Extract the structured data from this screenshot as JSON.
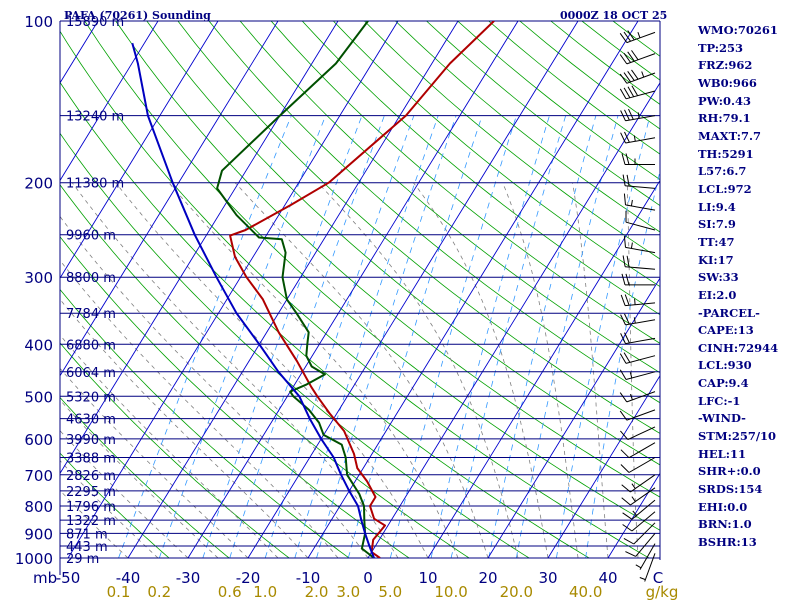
{
  "header": {
    "title": "PAFA (70261) Sounding",
    "date": "0000Z 18 OCT 25"
  },
  "indices": [
    "WMO:70261",
    "TP:253",
    "FRZ:962",
    "WB0:966",
    "PW:0.43",
    "RH:79.1",
    "MAXT:7.7",
    "TH:5291",
    "L57:6.7",
    "LCL:972",
    "LI:9.4",
    "SI:7.9",
    "TT:47",
    "KI:17",
    "SW:33",
    "EI:2.0",
    "-PARCEL-",
    "CAPE:13",
    "CINH:72944",
    "LCL:930",
    "CAP:9.4",
    "LFC:-1",
    "-WIND-",
    "STM:257/10",
    "HEL:11",
    "SHR+:0.0",
    "SRDS:154",
    "EHI:0.0",
    "BRN:1.0",
    "BSHR:13"
  ],
  "colors": {
    "text": "#000080",
    "isobar": "#000080",
    "isotherm": "#0000cd",
    "dry_adiabat": "#00a000",
    "moist_adiabat": "#808080",
    "mixing_ratio": "#3399ff",
    "temperature": "#b00000",
    "dewpoint": "#005000",
    "parcel": "#0000c0",
    "wind_barbs": "#000000"
  },
  "chart_data": {
    "type": "skew-t",
    "ylabel": "mb",
    "xlabel": "C",
    "mixing_ratio_unit": "g/kg",
    "ylim": [
      1000,
      100
    ],
    "xlim": [
      -50,
      50
    ],
    "pressure_ticks": [
      100,
      200,
      300,
      400,
      500,
      600,
      700,
      800,
      900,
      1000
    ],
    "temperature_ticks": [
      -50,
      -40,
      -30,
      -20,
      -10,
      0,
      10,
      20,
      30,
      40
    ],
    "temperature_tick_labels": [
      "-50",
      "-40",
      "-30",
      "-20",
      "-10",
      "0",
      "10",
      "20",
      "30",
      "40"
    ],
    "mixing_ratio_labels": [
      {
        "value": 0.1,
        "label": "0.1"
      },
      {
        "value": 0.2,
        "label": "0.2"
      },
      {
        "value": 0.6,
        "label": "0.6"
      },
      {
        "value": 1.0,
        "label": "1.0"
      },
      {
        "value": 2.0,
        "label": "2.0"
      },
      {
        "value": 3.0,
        "label": "3.0"
      },
      {
        "value": 5.0,
        "label": "5.0"
      },
      {
        "value": 10.0,
        "label": "10.0"
      },
      {
        "value": 20.0,
        "label": "20.0"
      },
      {
        "value": 40.0,
        "label": "40.0"
      }
    ],
    "height_labels": [
      {
        "p": 100,
        "label": "15890 m"
      },
      {
        "p": 150,
        "label": "13240 m"
      },
      {
        "p": 200,
        "label": "11380 m"
      },
      {
        "p": 250,
        "label": "9960 m"
      },
      {
        "p": 300,
        "label": "8800 m"
      },
      {
        "p": 350,
        "label": "7784 m"
      },
      {
        "p": 400,
        "label": "6880 m"
      },
      {
        "p": 450,
        "label": "6064 m"
      },
      {
        "p": 500,
        "label": "5320 m"
      },
      {
        "p": 550,
        "label": "4630 m"
      },
      {
        "p": 600,
        "label": "3990 m"
      },
      {
        "p": 650,
        "label": "3388 m"
      },
      {
        "p": 700,
        "label": "2826 m"
      },
      {
        "p": 750,
        "label": "2295 m"
      },
      {
        "p": 800,
        "label": "1796 m"
      },
      {
        "p": 850,
        "label": "1322 m"
      },
      {
        "p": 900,
        "label": "871 m"
      },
      {
        "p": 950,
        "label": "443 m"
      },
      {
        "p": 1000,
        "label": "29 m"
      }
    ],
    "series": [
      {
        "name": "temperature",
        "points": [
          {
            "p": 1000,
            "t": 2
          },
          {
            "p": 975,
            "t": 0
          },
          {
            "p": 925,
            "t": -1
          },
          {
            "p": 870,
            "t": -0.5
          },
          {
            "p": 845,
            "t": -3
          },
          {
            "p": 800,
            "t": -5
          },
          {
            "p": 770,
            "t": -5
          },
          {
            "p": 720,
            "t": -8
          },
          {
            "p": 680,
            "t": -11
          },
          {
            "p": 640,
            "t": -13
          },
          {
            "p": 580,
            "t": -17
          },
          {
            "p": 540,
            "t": -21
          },
          {
            "p": 500,
            "t": -25
          },
          {
            "p": 480,
            "t": -27
          },
          {
            "p": 430,
            "t": -32
          },
          {
            "p": 380,
            "t": -38
          },
          {
            "p": 330,
            "t": -44
          },
          {
            "p": 300,
            "t": -49
          },
          {
            "p": 275,
            "t": -53
          },
          {
            "p": 251,
            "t": -56
          },
          {
            "p": 245,
            "t": -54
          },
          {
            "p": 220,
            "t": -49
          },
          {
            "p": 200,
            "t": -45
          },
          {
            "p": 150,
            "t": -39
          },
          {
            "p": 120,
            "t": -37
          },
          {
            "p": 100,
            "t": -34
          }
        ]
      },
      {
        "name": "dewpoint",
        "points": [
          {
            "p": 1000,
            "t": 1
          },
          {
            "p": 960,
            "t": -2
          },
          {
            "p": 900,
            "t": -3
          },
          {
            "p": 850,
            "t": -4.5
          },
          {
            "p": 800,
            "t": -6
          },
          {
            "p": 760,
            "t": -8
          },
          {
            "p": 700,
            "t": -12
          },
          {
            "p": 650,
            "t": -14
          },
          {
            "p": 615,
            "t": -16
          },
          {
            "p": 590,
            "t": -20
          },
          {
            "p": 560,
            "t": -22
          },
          {
            "p": 530,
            "t": -25
          },
          {
            "p": 500,
            "t": -29
          },
          {
            "p": 490,
            "t": -30
          },
          {
            "p": 475,
            "t": -28
          },
          {
            "p": 455,
            "t": -26
          },
          {
            "p": 440,
            "t": -29
          },
          {
            "p": 420,
            "t": -31
          },
          {
            "p": 400,
            "t": -32
          },
          {
            "p": 380,
            "t": -33
          },
          {
            "p": 350,
            "t": -37
          },
          {
            "p": 330,
            "t": -40
          },
          {
            "p": 300,
            "t": -43
          },
          {
            "p": 270,
            "t": -45
          },
          {
            "p": 255,
            "t": -47
          },
          {
            "p": 253,
            "t": -51
          },
          {
            "p": 230,
            "t": -57
          },
          {
            "p": 205,
            "t": -63
          },
          {
            "p": 190,
            "t": -64
          },
          {
            "p": 150,
            "t": -60
          },
          {
            "p": 120,
            "t": -56
          },
          {
            "p": 100,
            "t": -55
          }
        ]
      },
      {
        "name": "parcel",
        "points": [
          {
            "p": 1000,
            "t": 1
          },
          {
            "p": 950,
            "t": -1
          },
          {
            "p": 900,
            "t": -3
          },
          {
            "p": 850,
            "t": -5
          },
          {
            "p": 800,
            "t": -7
          },
          {
            "p": 750,
            "t": -10
          },
          {
            "p": 700,
            "t": -13
          },
          {
            "p": 650,
            "t": -16
          },
          {
            "p": 600,
            "t": -20
          },
          {
            "p": 550,
            "t": -24
          },
          {
            "p": 500,
            "t": -28
          },
          {
            "p": 450,
            "t": -34
          },
          {
            "p": 400,
            "t": -40
          },
          {
            "p": 350,
            "t": -47
          },
          {
            "p": 300,
            "t": -54
          },
          {
            "p": 250,
            "t": -62
          },
          {
            "p": 200,
            "t": -71
          },
          {
            "p": 150,
            "t": -82
          },
          {
            "p": 120,
            "t": -89
          },
          {
            "p": 110,
            "t": -92
          }
        ]
      }
    ],
    "wind_barbs": [
      {
        "p": 105,
        "dir": 250,
        "spd": 35
      },
      {
        "p": 115,
        "dir": 250,
        "spd": 40
      },
      {
        "p": 125,
        "dir": 250,
        "spd": 45
      },
      {
        "p": 135,
        "dir": 255,
        "spd": 40
      },
      {
        "p": 150,
        "dir": 260,
        "spd": 35
      },
      {
        "p": 165,
        "dir": 260,
        "spd": 25
      },
      {
        "p": 185,
        "dir": 270,
        "spd": 25
      },
      {
        "p": 205,
        "dir": 275,
        "spd": 20
      },
      {
        "p": 225,
        "dir": 280,
        "spd": 15
      },
      {
        "p": 245,
        "dir": 285,
        "spd": 10
      },
      {
        "p": 270,
        "dir": 280,
        "spd": 15
      },
      {
        "p": 290,
        "dir": 275,
        "spd": 20
      },
      {
        "p": 310,
        "dir": 270,
        "spd": 20
      },
      {
        "p": 335,
        "dir": 265,
        "spd": 25
      },
      {
        "p": 360,
        "dir": 260,
        "spd": 25
      },
      {
        "p": 390,
        "dir": 260,
        "spd": 20
      },
      {
        "p": 420,
        "dir": 255,
        "spd": 20
      },
      {
        "p": 450,
        "dir": 255,
        "spd": 15
      },
      {
        "p": 490,
        "dir": 250,
        "spd": 15
      },
      {
        "p": 530,
        "dir": 250,
        "spd": 10
      },
      {
        "p": 570,
        "dir": 245,
        "spd": 10
      },
      {
        "p": 610,
        "dir": 240,
        "spd": 10
      },
      {
        "p": 650,
        "dir": 240,
        "spd": 10
      },
      {
        "p": 700,
        "dir": 235,
        "spd": 15
      },
      {
        "p": 740,
        "dir": 235,
        "spd": 15
      },
      {
        "p": 780,
        "dir": 230,
        "spd": 15
      },
      {
        "p": 820,
        "dir": 230,
        "spd": 10
      },
      {
        "p": 860,
        "dir": 225,
        "spd": 10
      },
      {
        "p": 900,
        "dir": 220,
        "spd": 10
      },
      {
        "p": 940,
        "dir": 210,
        "spd": 5
      },
      {
        "p": 980,
        "dir": 200,
        "spd": 5
      }
    ]
  }
}
